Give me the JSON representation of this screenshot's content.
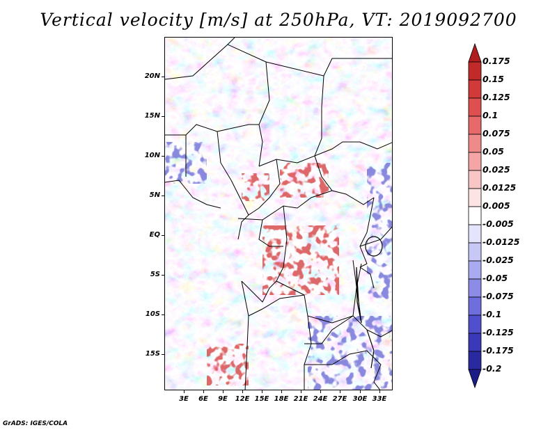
{
  "title": "Vertical velocity [m/s] at 250hPa, VT: 2019092700",
  "credit": "GrADS: IGES/COLA",
  "lat_labels": [
    "20N",
    "15N",
    "10N",
    "5N",
    "EQ",
    "5S",
    "10S",
    "15S"
  ],
  "lon_labels": [
    "3E",
    "6E",
    "9E",
    "12E",
    "15E",
    "18E",
    "21E",
    "24E",
    "27E",
    "30E",
    "33E"
  ],
  "colorbar": {
    "labels": [
      "0.175",
      "0.15",
      "0.125",
      "0.1",
      "0.075",
      "0.05",
      "0.025",
      "0.0125",
      "0.005",
      "-0.005",
      "-0.0125",
      "-0.025",
      "-0.05",
      "-0.075",
      "-0.1",
      "-0.125",
      "-0.175",
      "-0.2"
    ],
    "colors": [
      "#b11e1e",
      "#c22a2a",
      "#d23a3a",
      "#de5050",
      "#e66a6a",
      "#ee8a8a",
      "#f4a6a6",
      "#f9c6c6",
      "#fde4e4",
      "#ffffff",
      "#e4e4fd",
      "#c8c8f6",
      "#aaaaf0",
      "#8c8ce6",
      "#6e6edc",
      "#5050cc",
      "#3a3ab8",
      "#2a2aa0",
      "#1c1c88"
    ]
  },
  "colors": {
    "positive_accent": "#c0282c",
    "negative_accent": "#3c3cc8",
    "boundary": "#000000"
  }
}
